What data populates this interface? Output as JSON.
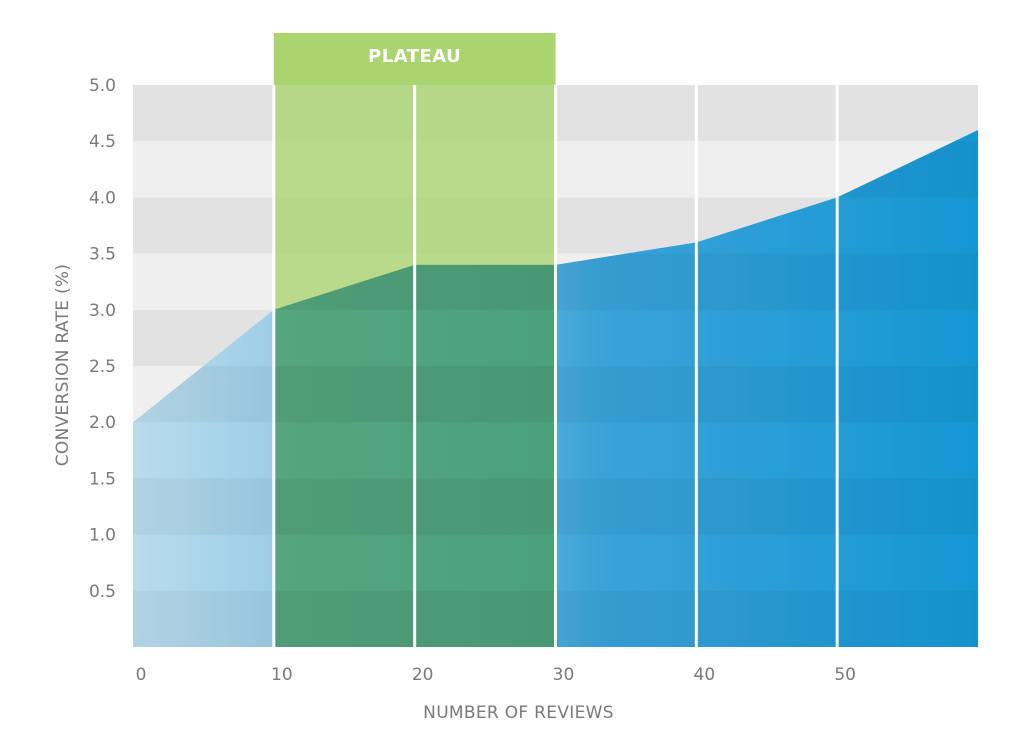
{
  "chart_data": {
    "type": "area",
    "title": "",
    "xlabel": "NUMBER OF REVIEWS",
    "ylabel": "CONVERSION RATE (%)",
    "x": [
      0,
      10,
      20,
      30,
      40,
      50,
      60
    ],
    "y": [
      2.0,
      3.0,
      3.4,
      3.4,
      3.6,
      4.0,
      4.6
    ],
    "xlim": [
      0,
      60
    ],
    "ylim": [
      0,
      5.0
    ],
    "x_ticks": [
      0,
      10,
      20,
      30,
      40,
      50
    ],
    "x_tick_labels": [
      "0",
      "10",
      "20",
      "30",
      "40",
      "50"
    ],
    "y_ticks": [
      0.5,
      1.0,
      1.5,
      2.0,
      2.5,
      3.0,
      3.5,
      4.0,
      4.5,
      5.0
    ],
    "y_tick_labels": [
      "0.5",
      "1.0",
      "1.5",
      "2.0",
      "2.5",
      "3.0",
      "3.5",
      "4.0",
      "4.5",
      "5.0"
    ],
    "grid": "horizontal alternating bands",
    "highlight": {
      "label": "PLATEAU",
      "x_start": 10,
      "x_end": 30
    },
    "colors": {
      "area_light": "#b9dced",
      "area_dark": "#1597d4",
      "plateau_band": "#a9d46e",
      "plateau_area": "#3c9a7a",
      "band_dark": "#e2e2e2",
      "band_light": "#efefef",
      "text": "#7a7a7a"
    }
  }
}
